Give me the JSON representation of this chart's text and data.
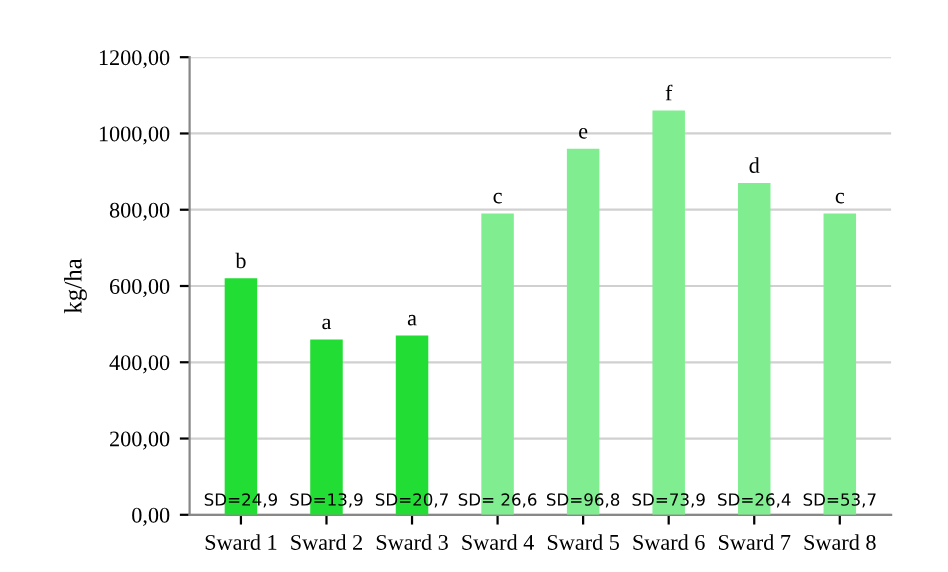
{
  "chart_data": {
    "type": "bar",
    "ylabel": "kg/ha",
    "categories": [
      "Sward 1",
      "Sward 2",
      "Sward 3",
      "Sward 4",
      "Sward 5",
      "Sward 6",
      "Sward 7",
      "Sward 8"
    ],
    "values": [
      620,
      460,
      470,
      790,
      960,
      1060,
      870,
      790
    ],
    "colors": [
      "#22dd33",
      "#22dd33",
      "#22dd33",
      "#80ee90",
      "#80ee90",
      "#80ee90",
      "#80ee90",
      "#80ee90"
    ],
    "ylim": [
      0,
      1200
    ],
    "yticks": [
      {
        "value": 0,
        "label": "0,00"
      },
      {
        "value": 200,
        "label": "200,00"
      },
      {
        "value": 400,
        "label": "400,00"
      },
      {
        "value": 600,
        "label": "600,00"
      },
      {
        "value": 800,
        "label": "800,00"
      },
      {
        "value": 1000,
        "label": "1000,00"
      },
      {
        "value": 1200,
        "label": "1200,00"
      }
    ],
    "grid": "y",
    "annotations": [
      {
        "text": "b",
        "x": "Sward 1",
        "y": 620
      },
      {
        "text": "a",
        "x": "Sward 2",
        "y": 460
      },
      {
        "text": "a",
        "x": "Sward 3",
        "y": 470
      },
      {
        "text": "c",
        "x": "Sward 4",
        "y": 790
      },
      {
        "text": "e",
        "x": "Sward 5",
        "y": 960
      },
      {
        "text": "f",
        "x": "Sward 6",
        "y": 1060
      },
      {
        "text": "d",
        "x": "Sward 7",
        "y": 870
      },
      {
        "text": "c",
        "x": "Sward 8",
        "y": 790
      },
      {
        "text": "SD=24,9",
        "x": "Sward 1",
        "y": 0
      },
      {
        "text": "SD=13,9",
        "x": "Sward 2",
        "y": 0
      },
      {
        "text": "SD=20,7",
        "x": "Sward 3",
        "y": 0
      },
      {
        "text": "SD= 26,6",
        "x": "Sward 4",
        "y": 0
      },
      {
        "text": "SD=96,8",
        "x": "Sward 5",
        "y": 0
      },
      {
        "text": "SD=73,9",
        "x": "Sward 6",
        "y": 0
      },
      {
        "text": "SD=26,4",
        "x": "Sward 7",
        "y": 0
      },
      {
        "text": "SD=53,7",
        "x": "Sward 8",
        "y": 0
      }
    ]
  }
}
